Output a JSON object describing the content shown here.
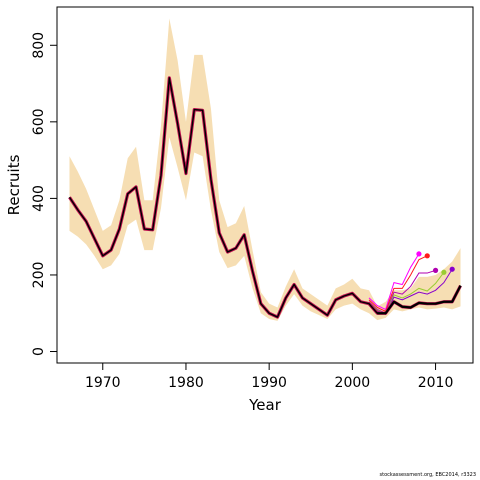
{
  "chart_data": {
    "type": "line",
    "xlabel": "Year",
    "ylabel": "Recruits",
    "xlim": [
      1964.5,
      2014.5
    ],
    "ylim": [
      -30,
      900
    ],
    "x_ticks": [
      1970,
      1980,
      1990,
      2000,
      2010
    ],
    "y_ticks": [
      0,
      200,
      400,
      600,
      800
    ],
    "colors": {
      "band": "#f6deb3",
      "final": "#000000",
      "retro": [
        "#ff00ff",
        "#ff1a1a",
        "#b000b0",
        "#9acd32",
        "#8800cc",
        "#ff4488"
      ]
    },
    "years": [
      1966,
      1967,
      1968,
      1969,
      1970,
      1971,
      1972,
      1973,
      1974,
      1975,
      1976,
      1977,
      1978,
      1979,
      1980,
      1981,
      1982,
      1983,
      1984,
      1985,
      1986,
      1987,
      1988,
      1989,
      1990,
      1991,
      1992,
      1993,
      1994,
      1995,
      1996,
      1997,
      1998,
      1999,
      2000,
      2001,
      2002,
      2003,
      2004,
      2005,
      2006,
      2007,
      2008,
      2009,
      2010,
      2011,
      2012,
      2013
    ],
    "band": {
      "lower": [
        315,
        300,
        280,
        250,
        215,
        225,
        255,
        330,
        345,
        265,
        265,
        375,
        560,
        480,
        395,
        520,
        510,
        370,
        260,
        218,
        225,
        250,
        165,
        100,
        85,
        80,
        120,
        150,
        120,
        105,
        95,
        85,
        110,
        120,
        125,
        110,
        100,
        82,
        88,
        110,
        105,
        110,
        115,
        110,
        112,
        115,
        110,
        118
      ],
      "upper": [
        510,
        470,
        425,
        370,
        315,
        330,
        395,
        505,
        535,
        395,
        395,
        590,
        870,
        760,
        600,
        775,
        775,
        635,
        395,
        325,
        335,
        380,
        265,
        155,
        125,
        115,
        170,
        215,
        165,
        150,
        135,
        120,
        165,
        175,
        190,
        165,
        160,
        118,
        130,
        160,
        160,
        165,
        195,
        195,
        200,
        215,
        235,
        270
      ]
    },
    "series": [
      {
        "values": [
          403,
          370,
          340,
          295,
          250,
          265,
          320,
          412,
          430,
          320,
          318,
          460,
          715,
          595,
          465,
          632,
          630,
          450,
          310,
          260,
          270,
          305,
          210,
          125,
          100,
          90,
          140,
          175,
          140,
          125,
          110,
          95,
          135,
          145,
          152,
          130,
          125,
          100,
          100,
          130,
          117,
          115,
          127,
          125,
          125,
          130,
          130,
          172
        ]
      }
    ],
    "retrospective": [
      {
        "x": [
          2002,
          2003,
          2004,
          2005,
          2006,
          2007,
          2008
        ],
        "y": [
          140,
          120,
          110,
          180,
          175,
          220,
          255
        ]
      },
      {
        "x": [
          2002,
          2003,
          2004,
          2005,
          2006,
          2007,
          2008,
          2009
        ],
        "y": [
          135,
          115,
          105,
          165,
          165,
          200,
          240,
          250
        ]
      },
      {
        "x": [
          2002,
          2003,
          2004,
          2005,
          2006,
          2007,
          2008,
          2009,
          2010
        ],
        "y": [
          130,
          110,
          100,
          155,
          150,
          170,
          205,
          205,
          212
        ]
      },
      {
        "x": [
          2002,
          2003,
          2004,
          2005,
          2006,
          2007,
          2008,
          2009,
          2010,
          2011
        ],
        "y": [
          128,
          108,
          98,
          148,
          140,
          150,
          165,
          158,
          178,
          207
        ]
      },
      {
        "x": [
          2002,
          2003,
          2004,
          2005,
          2006,
          2007,
          2008,
          2009,
          2010,
          2011,
          2012
        ],
        "y": [
          126,
          106,
          97,
          142,
          135,
          145,
          155,
          150,
          160,
          180,
          215
        ]
      }
    ]
  },
  "footer": "stockassessment.org, EBC2014, r3323"
}
